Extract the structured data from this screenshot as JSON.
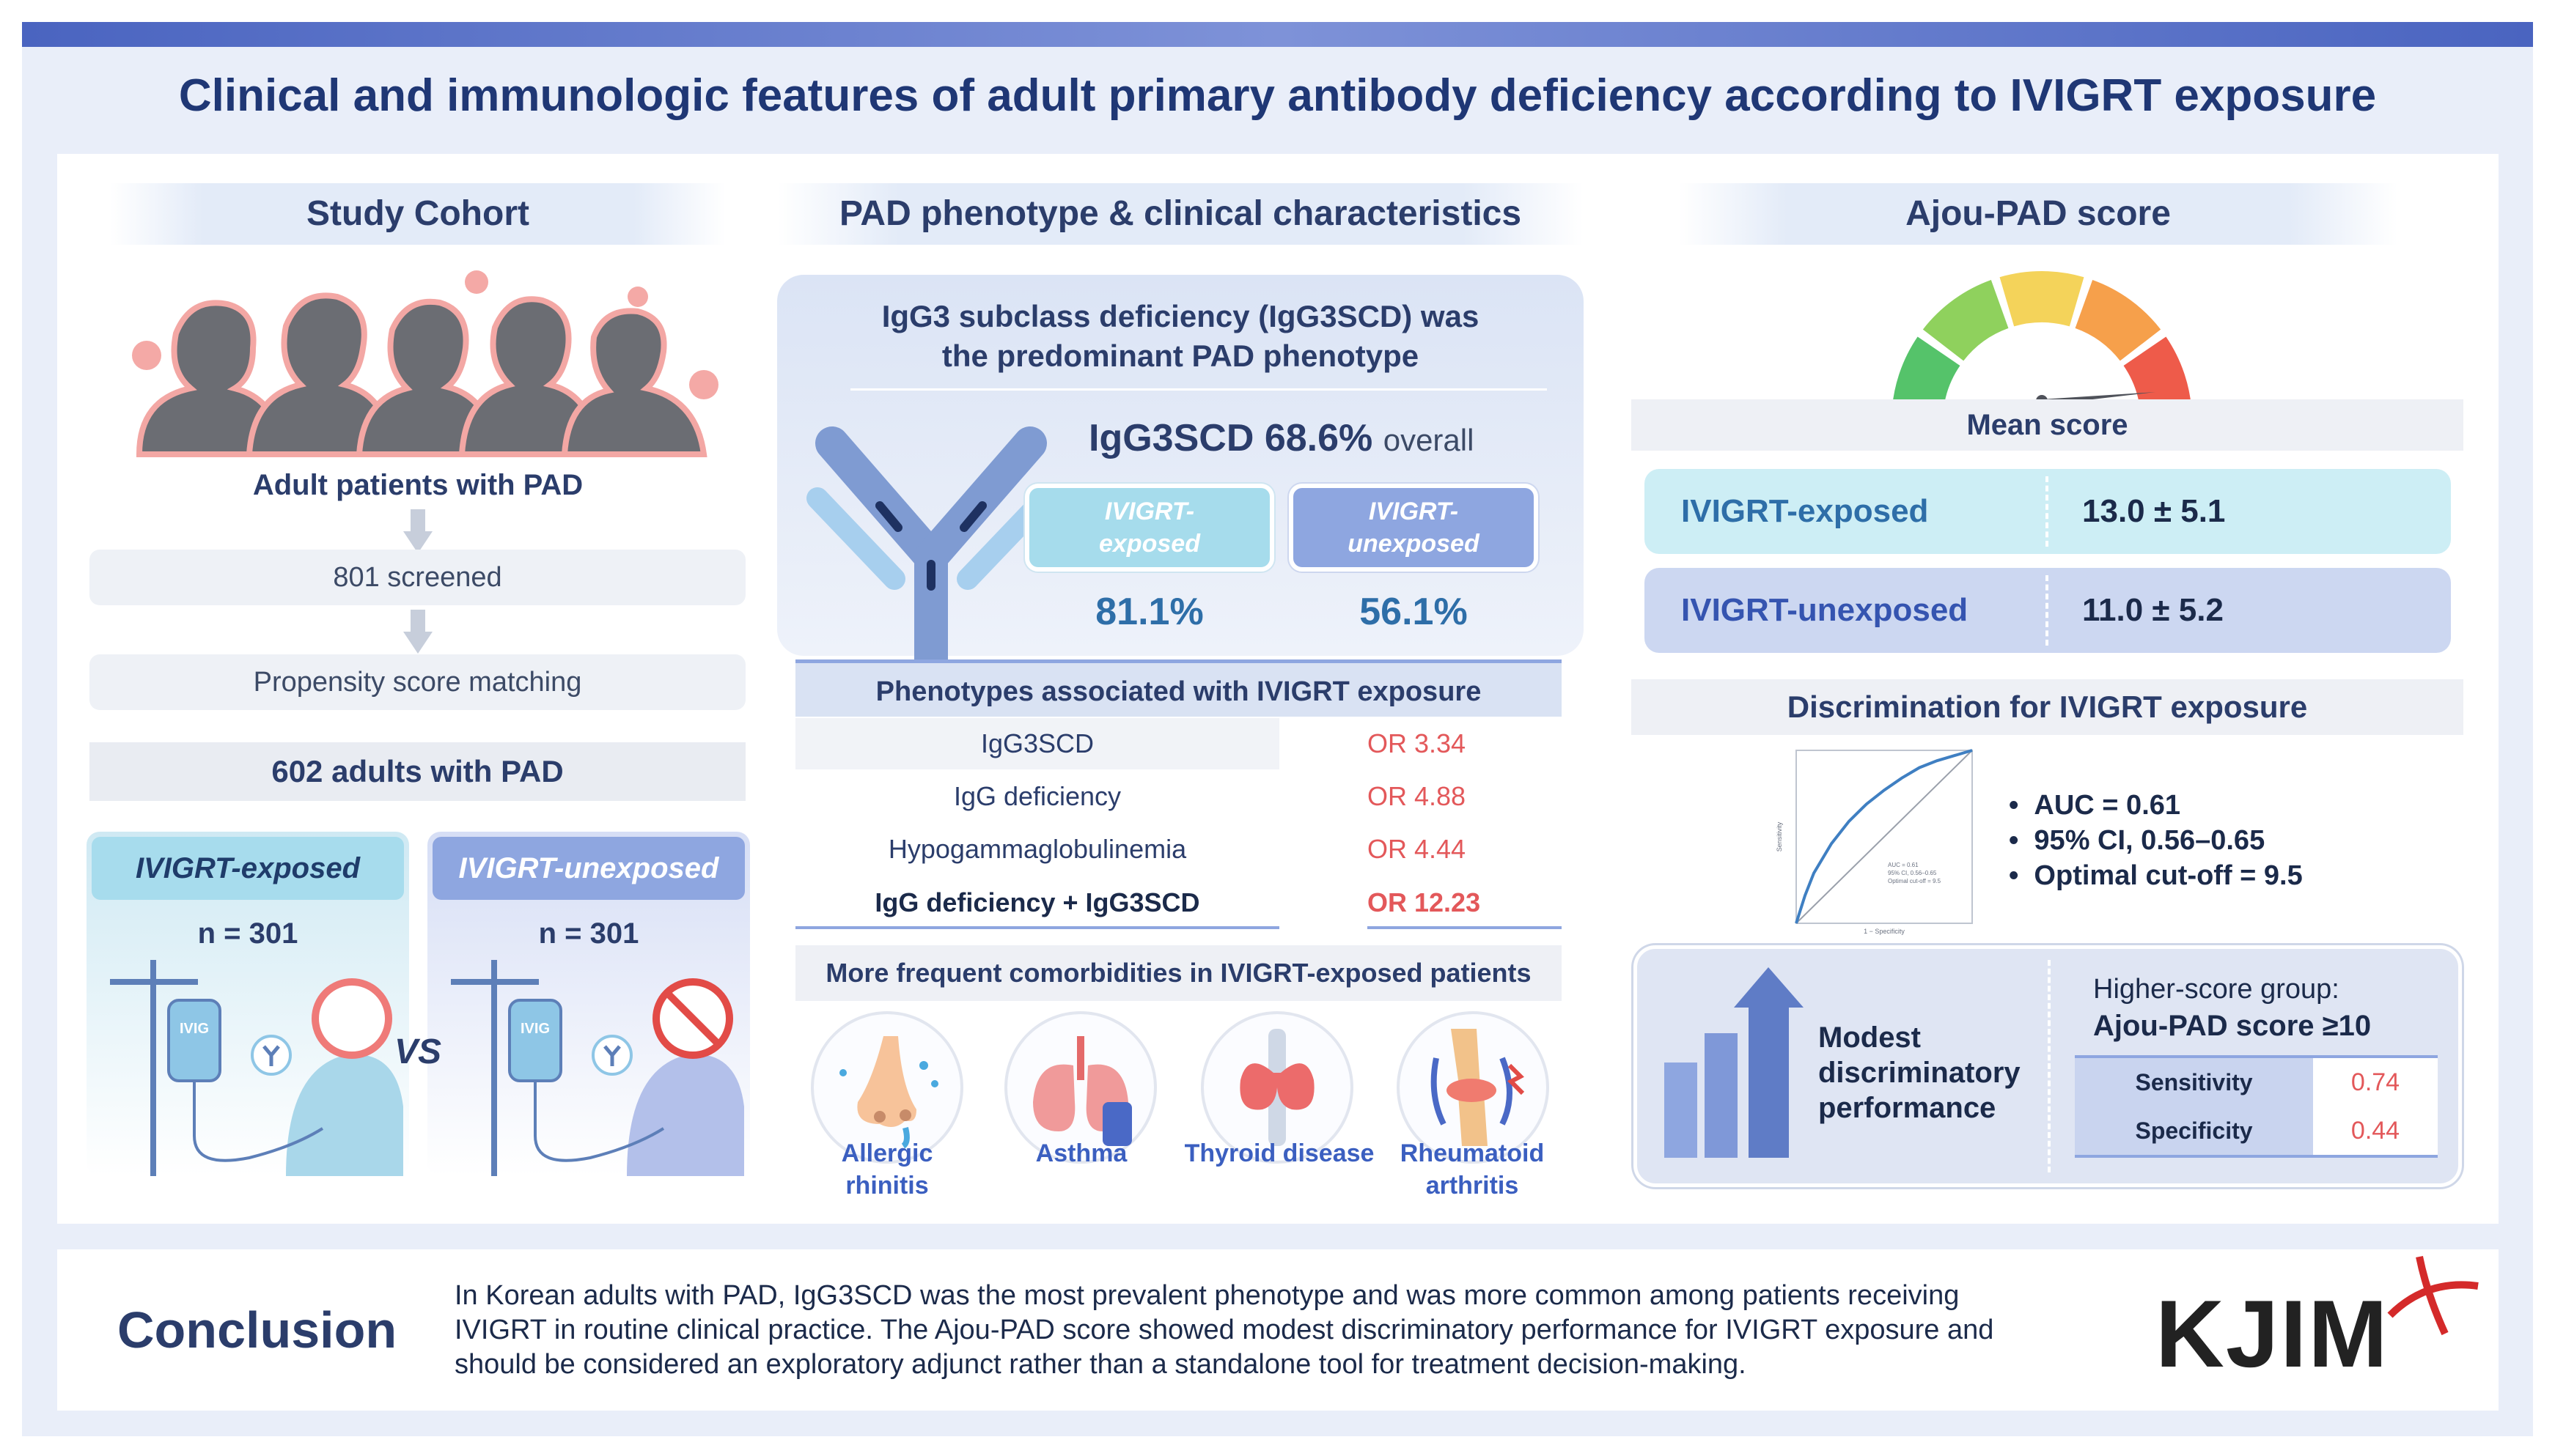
{
  "title": "Clinical and immunologic features of adult primary antibody deficiency according to IVIGRT exposure",
  "cohort": {
    "heading": "Study Cohort",
    "patients_label": "Adult patients with PAD",
    "screened": "801 screened",
    "matching": "Propensity score matching",
    "result": "602 adults with PAD",
    "exposed_label": "IVIGRT-exposed",
    "unexposed_label": "IVIGRT-unexposed",
    "exposed_n": "n = 301",
    "unexposed_n": "n = 301",
    "vs": "VS",
    "ivig_tag": "IVIG"
  },
  "phenotype": {
    "heading": "PAD phenotype & clinical characteristics",
    "statement_line1": "IgG3 subclass deficiency (IgG3SCD) was",
    "statement_line2": "the predominant PAD phenotype",
    "overall_value": "IgG3SCD 68.6%",
    "overall_suffix": "overall",
    "exposed_label_line1": "IVIGRT-",
    "exposed_label_line2": "exposed",
    "unexposed_label_line1": "IVIGRT-",
    "unexposed_label_line2": "unexposed",
    "exposed_pct": "81.1%",
    "unexposed_pct": "56.1%",
    "assoc_heading": "Phenotypes associated with IVIGRT exposure",
    "assoc_rows": [
      {
        "name": "IgG3SCD",
        "or": "OR 3.34"
      },
      {
        "name": "IgG deficiency",
        "or": "OR 4.88"
      },
      {
        "name": "Hypogammaglobulinemia",
        "or": "OR 4.44"
      },
      {
        "name": "IgG deficiency + IgG3SCD",
        "or": "OR 12.23"
      }
    ],
    "comorb_heading": "More frequent comorbidities in IVIGRT-exposed patients",
    "comorbidities": [
      {
        "line1": "Allergic",
        "line2": "rhinitis"
      },
      {
        "line1": "Asthma",
        "line2": ""
      },
      {
        "line1": "Thyroid disease",
        "line2": ""
      },
      {
        "line1": "Rheumatoid",
        "line2": "arthritis"
      }
    ]
  },
  "score": {
    "heading": "Ajou-PAD score",
    "mean_label": "Mean score",
    "exposed_label": "IVIGRT-exposed",
    "exposed_value": "13.0 ± 5.1",
    "unexposed_label": "IVIGRT-unexposed",
    "unexposed_value": "11.0 ± 5.2",
    "discrim_heading": "Discrimination for IVIGRT exposure",
    "roc_xlabel": "1 − Specificity",
    "roc_ylabel": "Sensitivity",
    "roc_legend": [
      "AUC = 0.61",
      "95% CI, 0.56–0.65",
      "Optimal cut-off = 9.5"
    ],
    "bullets": [
      "AUC = 0.61",
      "95% CI, 0.56–0.65",
      "Optimal cut-off = 9.5"
    ],
    "modest_line1": "Modest",
    "modest_line2": "discriminatory",
    "modest_line3": "performance",
    "group_line1": "Higher-score group:",
    "group_line2": "Ajou-PAD score ≥10",
    "sens_label": "Sensitivity",
    "sens_value": "0.74",
    "spec_label": "Specificity",
    "spec_value": "0.44",
    "gauge_colors": [
      "#55c36a",
      "#8fd15d",
      "#f4d35a",
      "#f6a04b",
      "#ee5b4a"
    ]
  },
  "conclusion": {
    "label": "Conclusion",
    "line1": "In Korean adults with PAD, IgG3SCD was the most prevalent phenotype and was more common among patients receiving",
    "line2": "IVIGRT in routine clinical practice. The Ajou-PAD score showed modest discriminatory performance for IVIGRT exposure and",
    "line3": "should be considered an exploratory adjunct rather than a standalone tool for treatment decision-making."
  },
  "logo": "KJIM",
  "roc_curve": {
    "points": [
      [
        0,
        0
      ],
      [
        0.05,
        0.16
      ],
      [
        0.1,
        0.29
      ],
      [
        0.2,
        0.46
      ],
      [
        0.3,
        0.59
      ],
      [
        0.4,
        0.69
      ],
      [
        0.5,
        0.77
      ],
      [
        0.6,
        0.84
      ],
      [
        0.7,
        0.9
      ],
      [
        0.8,
        0.94
      ],
      [
        0.9,
        0.97
      ],
      [
        1,
        1
      ]
    ]
  }
}
